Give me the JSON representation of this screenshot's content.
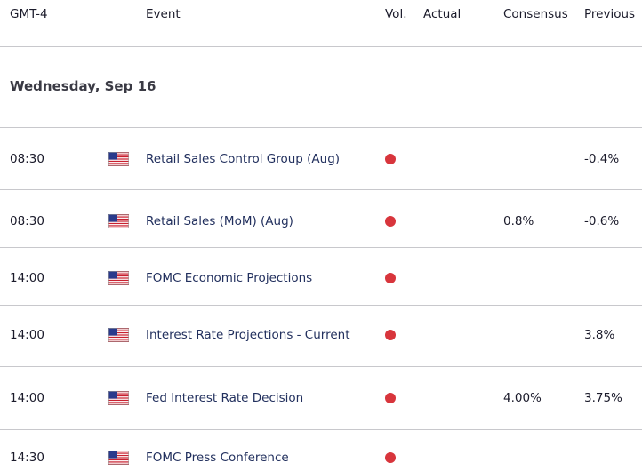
{
  "header": {
    "columns": [
      "GMT-4",
      "Event",
      "Vol.",
      "Actual",
      "Consensus",
      "Previous"
    ]
  },
  "date": "Wednesday, Sep 16",
  "rows": [
    {
      "time": "08:30",
      "event": "Retail Sales Control Group (Aug)",
      "previous": "-0.4%"
    },
    {
      "time": "08:30",
      "event": "Retail Sales (MoM) (Aug)",
      "consensus": "0.8%",
      "previous": "-0.6%"
    },
    {
      "time": "14:00",
      "event": "FOMC Economic Projections"
    },
    {
      "time": "14:00",
      "event": "Interest Rate Projections - Current",
      "previous": "3.8%"
    },
    {
      "time": "14:00",
      "event": "Fed Interest Rate Decision",
      "consensus": "4.00%",
      "previous": "3.75%"
    },
    {
      "time": "14:30",
      "event": "FOMC Press Conference"
    }
  ]
}
